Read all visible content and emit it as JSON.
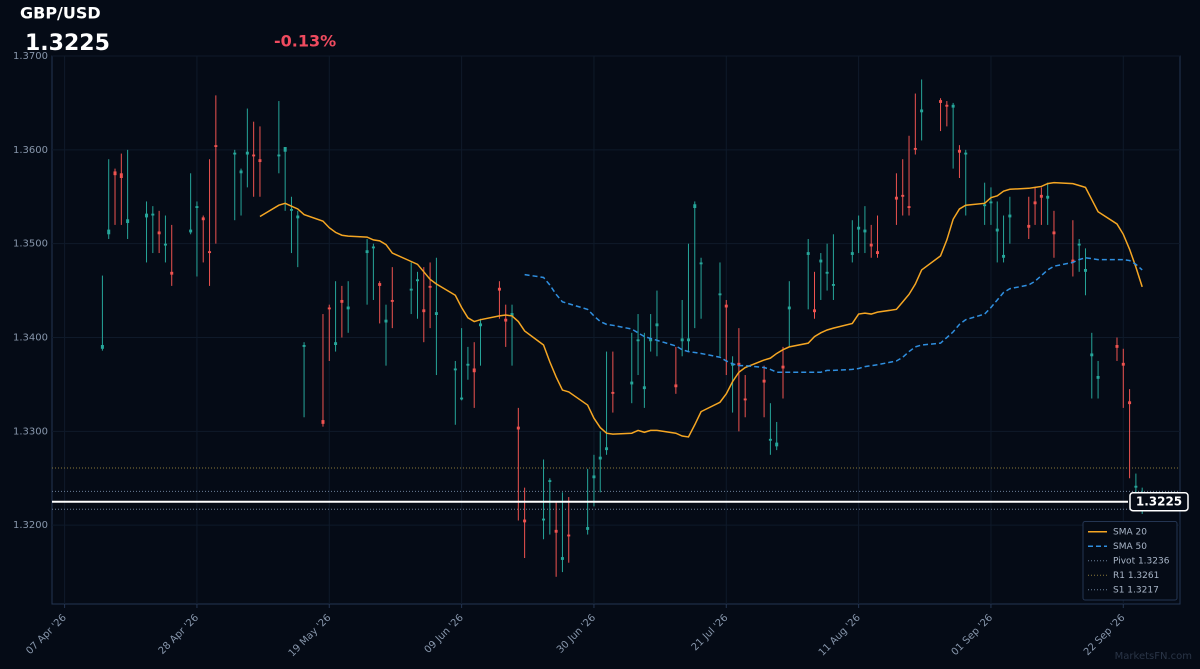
{
  "chart_data": {
    "type": "candlestick",
    "title": "GBP/USD",
    "price_label": "1.3225",
    "change_label": "-0.13%",
    "watermark": "MarketsFN.com",
    "up_color": "#26a69a",
    "down_color": "#ef5350",
    "grid": true,
    "legend_position": "lower right",
    "ylim": [
      1.3116,
      1.37
    ],
    "yticks": [
      {
        "value": 1.32,
        "label": "1.3200"
      },
      {
        "value": 1.33,
        "label": "1.3300"
      },
      {
        "value": 1.34,
        "label": "1.3400"
      },
      {
        "value": 1.35,
        "label": "1.3500"
      },
      {
        "value": 1.36,
        "label": "1.3600"
      },
      {
        "value": 1.37,
        "label": "1.3700"
      }
    ],
    "xlim": [
      "2026-04-05",
      "2026-10-01"
    ],
    "xticks": [
      {
        "value": "2026-04-07",
        "label": "07 Apr '26"
      },
      {
        "value": "2026-04-28",
        "label": "28 Apr '26"
      },
      {
        "value": "2026-05-19",
        "label": "19 May '26"
      },
      {
        "value": "2026-06-09",
        "label": "09 Jun '26"
      },
      {
        "value": "2026-06-30",
        "label": "30 Jun '26"
      },
      {
        "value": "2026-07-21",
        "label": "21 Jul '26"
      },
      {
        "value": "2026-08-11",
        "label": "11 Aug '26"
      },
      {
        "value": "2026-09-01",
        "label": "01 Sep '26"
      },
      {
        "value": "2026-09-22",
        "label": "22 Sep '26"
      }
    ],
    "x": [
      "2026-04-13",
      "2026-04-14",
      "2026-04-15",
      "2026-04-16",
      "2026-04-17",
      "2026-04-20",
      "2026-04-21",
      "2026-04-22",
      "2026-04-23",
      "2026-04-24",
      "2026-04-27",
      "2026-04-28",
      "2026-04-29",
      "2026-04-30",
      "2026-05-01",
      "2026-05-04",
      "2026-05-05",
      "2026-05-06",
      "2026-05-07",
      "2026-05-08",
      "2026-05-11",
      "2026-05-12",
      "2026-05-13",
      "2026-05-14",
      "2026-05-15",
      "2026-05-18",
      "2026-05-19",
      "2026-05-20",
      "2026-05-21",
      "2026-05-22",
      "2026-05-25",
      "2026-05-26",
      "2026-05-27",
      "2026-05-28",
      "2026-05-29",
      "2026-06-01",
      "2026-06-02",
      "2026-06-03",
      "2026-06-04",
      "2026-06-05",
      "2026-06-08",
      "2026-06-09",
      "2026-06-10",
      "2026-06-11",
      "2026-06-12",
      "2026-06-15",
      "2026-06-16",
      "2026-06-17",
      "2026-06-18",
      "2026-06-19",
      "2026-06-22",
      "2026-06-23",
      "2026-06-24",
      "2026-06-25",
      "2026-06-26",
      "2026-06-29",
      "2026-06-30",
      "2026-07-01",
      "2026-07-02",
      "2026-07-03",
      "2026-07-06",
      "2026-07-07",
      "2026-07-08",
      "2026-07-09",
      "2026-07-10",
      "2026-07-13",
      "2026-07-14",
      "2026-07-15",
      "2026-07-16",
      "2026-07-17",
      "2026-07-20",
      "2026-07-21",
      "2026-07-22",
      "2026-07-23",
      "2026-07-24",
      "2026-07-27",
      "2026-07-28",
      "2026-07-29",
      "2026-07-30",
      "2026-07-31",
      "2026-08-03",
      "2026-08-04",
      "2026-08-05",
      "2026-08-06",
      "2026-08-07",
      "2026-08-10",
      "2026-08-11",
      "2026-08-12",
      "2026-08-13",
      "2026-08-14",
      "2026-08-17",
      "2026-08-18",
      "2026-08-19",
      "2026-08-20",
      "2026-08-21",
      "2026-08-24",
      "2026-08-25",
      "2026-08-26",
      "2026-08-27",
      "2026-08-28",
      "2026-08-31",
      "2026-09-01",
      "2026-09-02",
      "2026-09-03",
      "2026-09-04",
      "2026-09-07",
      "2026-09-08",
      "2026-09-09",
      "2026-09-10",
      "2026-09-11",
      "2026-09-14",
      "2026-09-15",
      "2026-09-16",
      "2026-09-17",
      "2026-09-18",
      "2026-09-21",
      "2026-09-22",
      "2026-09-23",
      "2026-09-24",
      "2026-09-25"
    ],
    "open": [
      1.3388,
      1.351,
      1.3577,
      1.3575,
      1.3522,
      1.3528,
      1.353,
      1.3513,
      1.3498,
      1.347,
      1.3512,
      1.3538,
      1.3528,
      1.3492,
      1.3605,
      1.3595,
      1.3575,
      1.3595,
      1.3595,
      1.359,
      1.3593,
      1.3598,
      1.3535,
      1.3527,
      1.339,
      1.3312,
      1.3432,
      1.3392,
      1.344,
      1.343,
      1.349,
      1.3495,
      1.3458,
      1.3416,
      1.344,
      1.345,
      1.346,
      1.343,
      1.3455,
      1.3424,
      1.3365,
      1.3334,
      1.337,
      1.3367,
      1.3412,
      1.3453,
      1.342,
      1.3423,
      1.3305,
      1.3206,
      1.3205,
      1.3246,
      1.3195,
      1.3163,
      1.319,
      1.3195,
      1.325,
      1.327,
      1.328,
      1.3342,
      1.335,
      1.3396,
      1.3345,
      1.3396,
      1.3412,
      1.335,
      1.3396,
      1.3396,
      1.3538,
      1.3478,
      1.3445,
      1.3435,
      1.337,
      1.3373,
      1.3335,
      1.3355,
      1.329,
      1.3284,
      1.337,
      1.343,
      1.3488,
      1.343,
      1.348,
      1.3468,
      1.3455,
      1.3488,
      1.3515,
      1.3512,
      1.35,
      1.3492,
      1.355,
      1.3552,
      1.354,
      1.3602,
      1.364,
      1.3653,
      1.3648,
      1.3645,
      1.36,
      1.3595,
      1.354,
      1.3543,
      1.3513,
      1.3485,
      1.3528,
      1.352,
      1.3545,
      1.3552,
      1.3548,
      1.3513,
      1.3483,
      1.3498,
      1.347,
      1.338,
      1.3356,
      1.3392,
      1.3373,
      1.3332,
      1.324,
      1.3222
    ],
    "high": [
      1.3466,
      1.359,
      1.358,
      1.3596,
      1.36,
      1.3545,
      1.354,
      1.3535,
      1.353,
      1.352,
      1.3575,
      1.3545,
      1.353,
      1.359,
      1.3658,
      1.36,
      1.358,
      1.3644,
      1.363,
      1.3625,
      1.3652,
      1.3603,
      1.355,
      1.3535,
      1.3395,
      1.3425,
      1.3435,
      1.346,
      1.3455,
      1.346,
      1.3505,
      1.35,
      1.346,
      1.3435,
      1.3475,
      1.348,
      1.347,
      1.3475,
      1.348,
      1.3485,
      1.3375,
      1.341,
      1.339,
      1.3395,
      1.342,
      1.346,
      1.3435,
      1.3435,
      1.3325,
      1.324,
      1.327,
      1.325,
      1.3225,
      1.3235,
      1.323,
      1.326,
      1.3275,
      1.33,
      1.3385,
      1.3385,
      1.3405,
      1.3425,
      1.3405,
      1.3425,
      1.345,
      1.339,
      1.344,
      1.35,
      1.3545,
      1.3485,
      1.348,
      1.344,
      1.338,
      1.341,
      1.336,
      1.337,
      1.333,
      1.331,
      1.339,
      1.346,
      1.3505,
      1.347,
      1.349,
      1.35,
      1.351,
      1.3525,
      1.353,
      1.354,
      1.352,
      1.353,
      1.3575,
      1.359,
      1.3615,
      1.366,
      1.3675,
      1.3655,
      1.3652,
      1.365,
      1.3605,
      1.36,
      1.3565,
      1.356,
      1.3545,
      1.353,
      1.355,
      1.355,
      1.356,
      1.356,
      1.3565,
      1.3535,
      1.3525,
      1.3505,
      1.3495,
      1.3405,
      1.3375,
      1.34,
      1.3388,
      1.3345,
      1.3255,
      1.324
    ],
    "low": [
      1.3386,
      1.3505,
      1.352,
      1.352,
      1.3505,
      1.348,
      1.349,
      1.349,
      1.348,
      1.3455,
      1.351,
      1.3465,
      1.348,
      1.3455,
      1.35,
      1.3525,
      1.353,
      1.356,
      1.355,
      1.355,
      1.3575,
      1.3535,
      1.349,
      1.3475,
      1.3315,
      1.3305,
      1.3375,
      1.3385,
      1.34,
      1.3405,
      1.3435,
      1.344,
      1.3415,
      1.337,
      1.341,
      1.3425,
      1.342,
      1.3395,
      1.341,
      1.336,
      1.3307,
      1.3333,
      1.3355,
      1.3325,
      1.337,
      1.342,
      1.339,
      1.337,
      1.3205,
      1.3165,
      1.3185,
      1.319,
      1.3145,
      1.315,
      1.316,
      1.319,
      1.322,
      1.3235,
      1.3275,
      1.332,
      1.333,
      1.336,
      1.3325,
      1.3385,
      1.338,
      1.334,
      1.338,
      1.3385,
      1.341,
      1.342,
      1.338,
      1.336,
      1.332,
      1.33,
      1.3315,
      1.3315,
      1.3275,
      1.328,
      1.3335,
      1.339,
      1.343,
      1.342,
      1.344,
      1.345,
      1.344,
      1.348,
      1.349,
      1.349,
      1.3485,
      1.3485,
      1.352,
      1.353,
      1.353,
      1.3595,
      1.361,
      1.362,
      1.3625,
      1.358,
      1.357,
      1.353,
      1.352,
      1.352,
      1.348,
      1.348,
      1.35,
      1.3505,
      1.352,
      1.352,
      1.352,
      1.3485,
      1.3465,
      1.347,
      1.3445,
      1.3335,
      1.3335,
      1.3375,
      1.3325,
      1.325,
      1.3215,
      1.3212
    ],
    "close": [
      1.3392,
      1.3515,
      1.3573,
      1.357,
      1.3526,
      1.3532,
      1.3532,
      1.351,
      1.35,
      1.3467,
      1.3515,
      1.354,
      1.3525,
      1.349,
      1.3603,
      1.3597,
      1.3578,
      1.3598,
      1.3593,
      1.3587,
      1.3595,
      1.3603,
      1.3537,
      1.353,
      1.3392,
      1.3308,
      1.343,
      1.3395,
      1.3437,
      1.3433,
      1.3493,
      1.3497,
      1.3455,
      1.3419,
      1.3438,
      1.3452,
      1.3462,
      1.3427,
      1.3453,
      1.3427,
      1.3367,
      1.3336,
      1.3372,
      1.3363,
      1.3415,
      1.345,
      1.3417,
      1.3426,
      1.3302,
      1.3203,
      1.3207,
      1.3248,
      1.3192,
      1.3166,
      1.3188,
      1.3198,
      1.3253,
      1.3273,
      1.3283,
      1.334,
      1.3353,
      1.3398,
      1.3348,
      1.3399,
      1.3415,
      1.3347,
      1.3399,
      1.3399,
      1.3542,
      1.348,
      1.3447,
      1.3432,
      1.3372,
      1.337,
      1.3333,
      1.3352,
      1.3292,
      1.3288,
      1.3367,
      1.3433,
      1.3491,
      1.3427,
      1.3483,
      1.347,
      1.3457,
      1.3491,
      1.3518,
      1.3515,
      1.3497,
      1.3489,
      1.3547,
      1.355,
      1.3538,
      1.36,
      1.3643,
      1.365,
      1.3646,
      1.3648,
      1.3597,
      1.3597,
      1.3542,
      1.3545,
      1.3516,
      1.3488,
      1.3531,
      1.3517,
      1.3542,
      1.3549,
      1.3551,
      1.351,
      1.348,
      1.35,
      1.3473,
      1.3383,
      1.3359,
      1.3389,
      1.337,
      1.3329,
      1.3242,
      1.3225
    ],
    "series": [
      {
        "name": "SMA 20",
        "color": "#f5a623",
        "dashed": false,
        "values": [
          null,
          null,
          null,
          null,
          null,
          null,
          null,
          null,
          null,
          null,
          null,
          null,
          null,
          null,
          null,
          null,
          null,
          null,
          null,
          1.3529,
          1.3541,
          1.3543,
          1.354,
          1.3537,
          1.3531,
          1.3524,
          1.3517,
          1.3512,
          1.3509,
          1.3508,
          1.3507,
          1.3504,
          1.3503,
          1.3499,
          1.349,
          1.3481,
          1.3478,
          1.347,
          1.3462,
          1.3457,
          1.3445,
          1.3432,
          1.3421,
          1.3417,
          1.3419,
          1.3423,
          1.3424,
          1.3423,
          1.3417,
          1.3407,
          1.3392,
          1.3374,
          1.3358,
          1.3344,
          1.3342,
          1.3328,
          1.3314,
          1.3304,
          1.3298,
          1.3297,
          1.3298,
          1.3301,
          1.3299,
          1.3301,
          1.3301,
          1.3298,
          1.3295,
          1.3294,
          1.3307,
          1.3321,
          1.3331,
          1.334,
          1.3353,
          1.3363,
          1.3368,
          1.3376,
          1.3378,
          1.3383,
          1.3387,
          1.339,
          1.3394,
          1.3401,
          1.3405,
          1.3408,
          1.341,
          1.3415,
          1.3425,
          1.3426,
          1.3425,
          1.3427,
          1.343,
          1.3438,
          1.3446,
          1.3457,
          1.3472,
          1.3487,
          1.3504,
          1.3526,
          1.3537,
          1.3541,
          1.3543,
          1.3549,
          1.3551,
          1.3556,
          1.3558,
          1.3559,
          1.356,
          1.3561,
          1.3564,
          1.3565,
          1.3564,
          1.3562,
          1.356,
          1.3547,
          1.3534,
          1.3521,
          1.351,
          1.3494,
          1.3475,
          1.3454
        ]
      },
      {
        "name": "SMA 50",
        "color": "#2f8fe0",
        "dashed": true,
        "values": [
          null,
          null,
          null,
          null,
          null,
          null,
          null,
          null,
          null,
          null,
          null,
          null,
          null,
          null,
          null,
          null,
          null,
          null,
          null,
          null,
          null,
          null,
          null,
          null,
          null,
          null,
          null,
          null,
          null,
          null,
          null,
          null,
          null,
          null,
          null,
          null,
          null,
          null,
          null,
          null,
          null,
          null,
          null,
          null,
          null,
          null,
          null,
          null,
          null,
          1.3467,
          1.3464,
          1.3456,
          1.3446,
          1.3438,
          1.3436,
          1.343,
          1.3423,
          1.3417,
          1.3414,
          1.3413,
          1.3409,
          1.3405,
          1.3401,
          1.3399,
          1.3397,
          1.3391,
          1.3387,
          1.3385,
          1.3384,
          1.3383,
          1.3379,
          1.3375,
          1.3372,
          1.337,
          1.337,
          1.3368,
          1.3366,
          1.3363,
          1.3363,
          1.3363,
          1.3363,
          1.3363,
          1.3363,
          1.3365,
          1.3365,
          1.3366,
          1.3367,
          1.3369,
          1.337,
          1.3371,
          1.3375,
          1.3379,
          1.3385,
          1.339,
          1.3392,
          1.3394,
          1.34,
          1.3406,
          1.3414,
          1.3419,
          1.3425,
          1.3432,
          1.344,
          1.3448,
          1.3452,
          1.3456,
          1.346,
          1.3466,
          1.3472,
          1.3476,
          1.348,
          1.3483,
          1.3485,
          1.3484,
          1.3483,
          1.3483,
          1.3483,
          1.3482,
          1.3478,
          1.3472
        ]
      }
    ],
    "levels": [
      {
        "label": "Pivot 1.3236",
        "value": 1.3236,
        "color": "#6b7f99"
      },
      {
        "label": "R1 1.3261",
        "value": 1.3261,
        "color": "#8a7a3a"
      },
      {
        "label": "S1 1.3217",
        "value": 1.3217,
        "color": "#6b7f99"
      }
    ],
    "last_price": {
      "value": 1.3225,
      "label": "1.3225",
      "color": "#ffffff"
    }
  }
}
